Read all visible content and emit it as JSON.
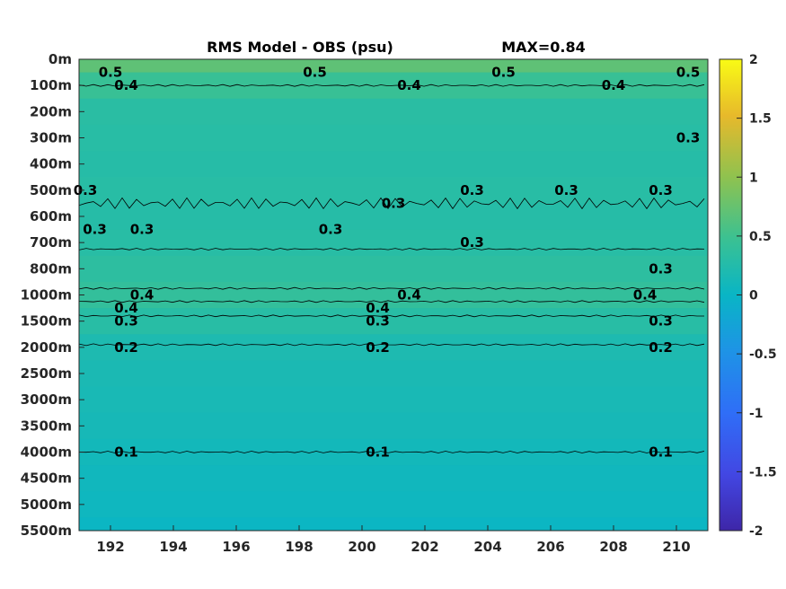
{
  "chart_data": {
    "type": "heatmap",
    "title": "RMS Model - OBS (psu)",
    "annotation": "MAX=0.84",
    "xlabel": "",
    "ylabel": "",
    "xlim": [
      191,
      211
    ],
    "x_ticks": [
      "192",
      "194",
      "196",
      "198",
      "200",
      "202",
      "204",
      "206",
      "208",
      "210"
    ],
    "y_ticks": [
      "0m",
      "100m",
      "200m",
      "300m",
      "400m",
      "500m",
      "600m",
      "700m",
      "800m",
      "1000m",
      "1500m",
      "2000m",
      "2500m",
      "3000m",
      "3500m",
      "4000m",
      "4500m",
      "5000m",
      "5500m"
    ],
    "colorbar": {
      "range": [
        -2,
        2
      ],
      "ticks": [
        "2",
        "1.5",
        "1",
        "0.5",
        "0",
        "-0.5",
        "-1",
        "-1.5",
        "-2"
      ],
      "colormap": "parula"
    },
    "depth_bands": [
      {
        "depth": "0m",
        "value": 0.7
      },
      {
        "depth": "100m",
        "value": 0.45
      },
      {
        "depth": "200m",
        "value": 0.32
      },
      {
        "depth": "300m",
        "value": 0.3
      },
      {
        "depth": "400m",
        "value": 0.28
      },
      {
        "depth": "500m",
        "value": 0.3
      },
      {
        "depth": "600m",
        "value": 0.28
      },
      {
        "depth": "700m",
        "value": 0.3
      },
      {
        "depth": "800m",
        "value": 0.35
      },
      {
        "depth": "1000m",
        "value": 0.4
      },
      {
        "depth": "1500m",
        "value": 0.3
      },
      {
        "depth": "2000m",
        "value": 0.2
      },
      {
        "depth": "2500m",
        "value": 0.17
      },
      {
        "depth": "3000m",
        "value": 0.15
      },
      {
        "depth": "3500m",
        "value": 0.13
      },
      {
        "depth": "4000m",
        "value": 0.1
      },
      {
        "depth": "4500m",
        "value": 0.08
      },
      {
        "depth": "5000m",
        "value": 0.06
      },
      {
        "depth": "5500m",
        "value": 0.02
      }
    ],
    "contour_labels": [
      {
        "text": "0.5",
        "x": 192.0,
        "depth": "50m"
      },
      {
        "text": "0.5",
        "x": 198.5,
        "depth": "50m"
      },
      {
        "text": "0.5",
        "x": 204.5,
        "depth": "50m"
      },
      {
        "text": "0.5",
        "x": 210.5,
        "depth": "50m"
      },
      {
        "text": "0.4",
        "x": 192.5,
        "depth": "100m"
      },
      {
        "text": "0.4",
        "x": 201.5,
        "depth": "100m"
      },
      {
        "text": "0.4",
        "x": 208.0,
        "depth": "100m"
      },
      {
        "text": "0.3",
        "x": 191.2,
        "depth": "500m"
      },
      {
        "text": "0.3",
        "x": 191.5,
        "depth": "650m"
      },
      {
        "text": "0.3",
        "x": 193.0,
        "depth": "650m"
      },
      {
        "text": "0.3",
        "x": 199.0,
        "depth": "650m"
      },
      {
        "text": "0.3",
        "x": 201.0,
        "depth": "550m"
      },
      {
        "text": "0.3",
        "x": 203.5,
        "depth": "500m"
      },
      {
        "text": "0.3",
        "x": 206.5,
        "depth": "500m"
      },
      {
        "text": "0.3",
        "x": 209.5,
        "depth": "500m"
      },
      {
        "text": "0.3",
        "x": 211.0,
        "depth": "300m"
      },
      {
        "text": "0.3",
        "x": 203.5,
        "depth": "700m"
      },
      {
        "text": "0.3",
        "x": 209.5,
        "depth": "800m"
      },
      {
        "text": "0.4",
        "x": 193.0,
        "depth": "1000m"
      },
      {
        "text": "0.4",
        "x": 201.5,
        "depth": "1000m"
      },
      {
        "text": "0.4",
        "x": 209.0,
        "depth": "1000m"
      },
      {
        "text": "0.4",
        "x": 192.5,
        "depth": "1250m"
      },
      {
        "text": "0.4",
        "x": 200.5,
        "depth": "1250m"
      },
      {
        "text": "0.3",
        "x": 192.5,
        "depth": "1500m"
      },
      {
        "text": "0.3",
        "x": 200.5,
        "depth": "1500m"
      },
      {
        "text": "0.3",
        "x": 209.5,
        "depth": "1500m"
      },
      {
        "text": "0.2",
        "x": 192.5,
        "depth": "2000m"
      },
      {
        "text": "0.2",
        "x": 200.5,
        "depth": "2000m"
      },
      {
        "text": "0.2",
        "x": 209.5,
        "depth": "2000m"
      },
      {
        "text": "0.1",
        "x": 192.5,
        "depth": "4000m"
      },
      {
        "text": "0.1",
        "x": 200.5,
        "depth": "4000m"
      },
      {
        "text": "0.1",
        "x": 209.5,
        "depth": "4000m"
      }
    ]
  }
}
